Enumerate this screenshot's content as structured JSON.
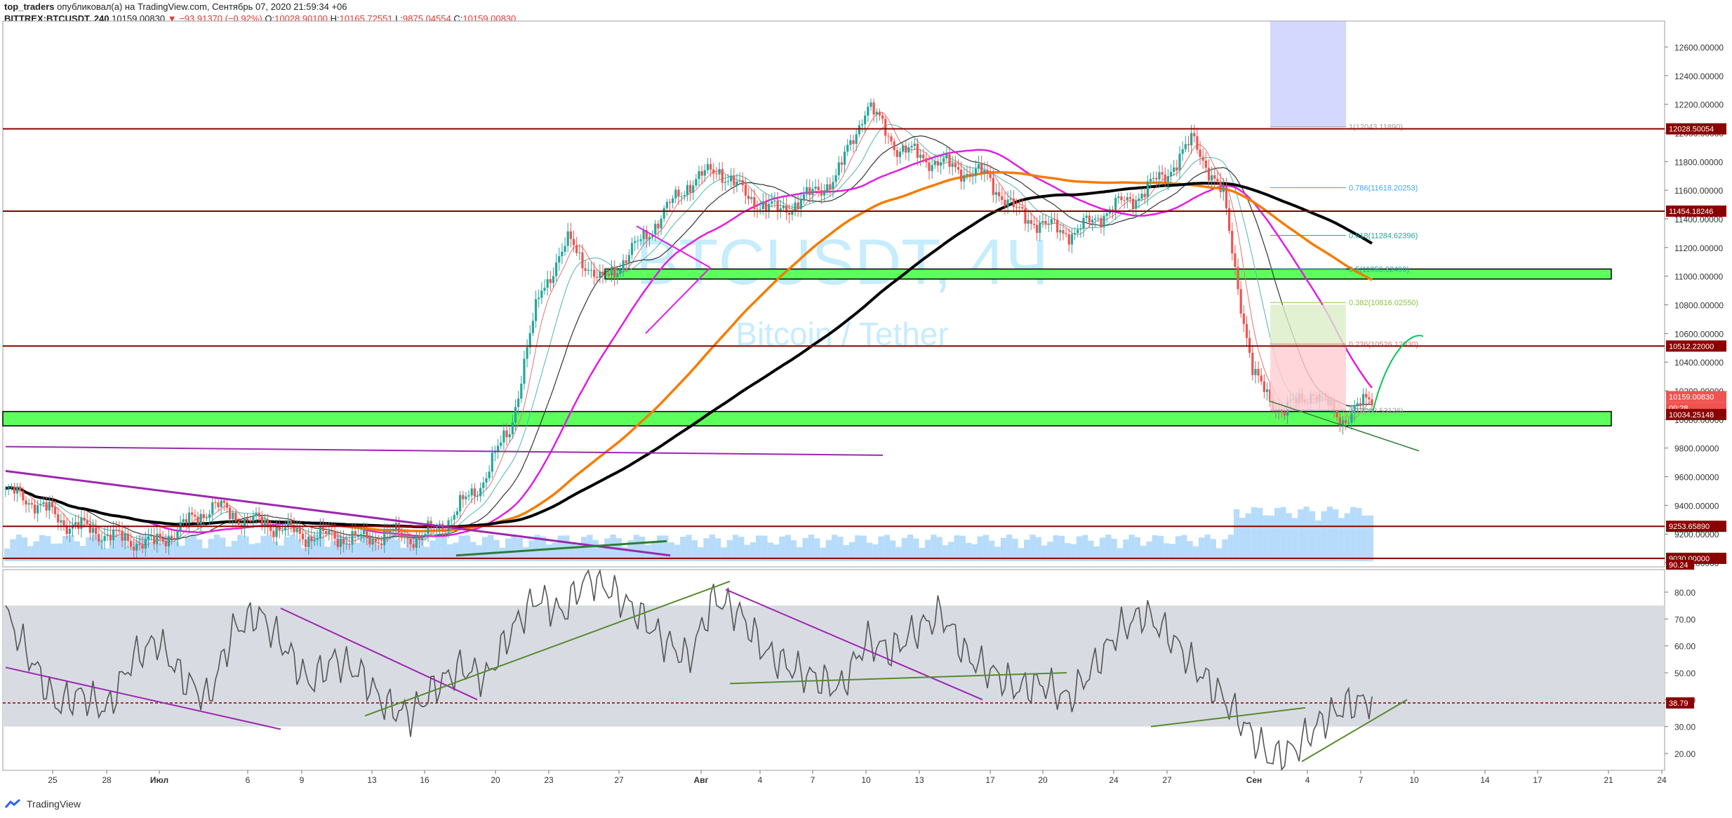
{
  "header": {
    "author": "top_traders",
    "published_text": "опубликовал(а) на TradingView.com, Сентябрь 07, 2020 21:59:34 +06",
    "symbol": "BITTREX:BTCUSDT, 240",
    "last": "10159.00830",
    "change": "−93.91370 (−0.92%)",
    "open_label": "O:",
    "open": "10028.90100",
    "high_label": "H:",
    "high": "10165.72551",
    "low_label": "L:",
    "low": "9875.04554",
    "close_label": "C:",
    "close": "10159.00830"
  },
  "watermark": {
    "title": "BTCUSDT, 4Ч",
    "subtitle": "Bitcoin / Tether"
  },
  "footer": {
    "brand": "TradingView"
  },
  "colors": {
    "up": "#26a69a",
    "down": "#ef5350",
    "ema_orange": "#f57c00",
    "ema_black": "#000000",
    "magenta": "#e01ee0",
    "purple": "#9c27b0",
    "green_zone": "#5dff5d",
    "dark_red": "#8b0000",
    "volume": "#90caf9"
  },
  "chart_data": [
    {
      "type": "candlestick",
      "name": "price",
      "x_tick_labels": [
        "25",
        "28",
        "Июл",
        "6",
        "9",
        "13",
        "16",
        "20",
        "23",
        "27",
        "Авг",
        "4",
        "7",
        "10",
        "13",
        "17",
        "20",
        "24",
        "27",
        "Сен",
        "4",
        "7",
        "10",
        "14",
        "17",
        "21",
        "24"
      ],
      "y_tick_labels": [
        "9000.00000",
        "9200.00000",
        "9400.00000",
        "9600.00000",
        "9800.00000",
        "10000.00000",
        "10200.00000",
        "10400.00000",
        "10600.00000",
        "10800.00000",
        "11000.00000",
        "11200.00000",
        "11400.00000",
        "11600.00000",
        "11800.00000",
        "12000.00000",
        "12200.00000",
        "12400.00000",
        "12600.00000"
      ],
      "ylim": [
        9020,
        12700
      ],
      "horizontal_levels": [
        {
          "value": 12028.50054,
          "label": "12028.50054"
        },
        {
          "value": 11454.18246,
          "label": "11454.18246"
        },
        {
          "value": 10512.22,
          "label": "10512.22000"
        },
        {
          "value": 9253.6589,
          "label": "9253.65890"
        },
        {
          "value": 9030.0,
          "label": "9030.00000"
        }
      ],
      "price_badges": [
        {
          "value": 10159.0083,
          "label": "10159.00830"
        },
        {
          "value": 10080,
          "label": "00:28"
        },
        {
          "value": 10034.25148,
          "label": "10034.25148"
        }
      ],
      "support_zones": [
        {
          "from": 10980,
          "to": 11050
        },
        {
          "from": 9955,
          "to": 10055
        }
      ],
      "fibonacci": [
        {
          "level": "1",
          "value": 12043.1189,
          "label": "1(12043.11890)"
        },
        {
          "level": "0.786",
          "value": 11618.20253,
          "label": "0.786(11618.20253)"
        },
        {
          "level": "0.618",
          "value": 11284.62396,
          "label": "0.618(11284.62396)"
        },
        {
          "level": "0.5",
          "value": 11050.3249,
          "label": "0.5(11050.32490)"
        },
        {
          "level": "0.382",
          "value": 10816.0255,
          "label": "0.382(10816.02550)"
        },
        {
          "level": "0.236",
          "value": 10526.1293,
          "label": "0.236(10526.12930)"
        },
        {
          "level": "0",
          "value": 10063.53126,
          "label": "0(10063.53126)"
        }
      ],
      "series": [
        {
          "name": "",
          "values": [
            9500,
            9420,
            9280,
            9220,
            9160,
            9130,
            9260,
            9400,
            9300,
            9260,
            9190,
            9180,
            9160,
            9200,
            9170,
            9320,
            9550,
            9950,
            10900,
            11250,
            10950,
            11150,
            11400,
            11650,
            11750,
            11550,
            11450,
            11550,
            11700,
            12200,
            11900,
            11820,
            11750,
            11700,
            11450,
            11350,
            11300,
            11450,
            11550,
            11700,
            11950,
            11550,
            10300,
            10050,
            10200,
            10000,
            10150
          ]
        }
      ]
    },
    {
      "type": "line",
      "name": "oscillator",
      "y_tick_labels": [
        "20.00",
        "30.00",
        "40.00",
        "50.00",
        "60.00",
        "70.00",
        "80.00"
      ],
      "ylim": [
        13,
        90
      ],
      "band": [
        30,
        75
      ],
      "current": {
        "value": 38.79,
        "label": "38.79"
      },
      "top_label": "90.24",
      "series": [
        {
          "name": "",
          "values": [
            72,
            55,
            38,
            42,
            36,
            55,
            62,
            48,
            40,
            66,
            72,
            60,
            46,
            55,
            50,
            38,
            34,
            45,
            52,
            48,
            66,
            78,
            72,
            86,
            80,
            72,
            62,
            55,
            78,
            72,
            58,
            52,
            48,
            44,
            62,
            58,
            66,
            72,
            56,
            50,
            44,
            46,
            40,
            52,
            66,
            72,
            64,
            52,
            42,
            30,
            18,
            22,
            32,
            38,
            40
          ]
        }
      ]
    }
  ]
}
